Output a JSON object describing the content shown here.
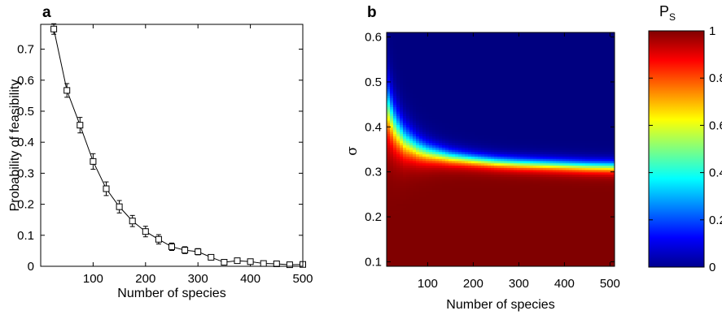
{
  "panel_a": {
    "letter": "a"
  },
  "panel_b": {
    "letter": "b"
  },
  "colorbar": {
    "label": "P",
    "label_sub": "S",
    "ticks": [
      "0",
      "0.2",
      "0.4",
      "0.6",
      "0.8",
      "1"
    ]
  },
  "chart_data": [
    {
      "panel": "a",
      "type": "line",
      "marker": "square",
      "error_bars": true,
      "xlabel": "Number of species",
      "ylabel": "Probability of feasibility",
      "xlim": [
        0,
        500
      ],
      "ylim": [
        0,
        0.78
      ],
      "xticks": [
        100,
        200,
        300,
        400,
        500
      ],
      "yticks": [
        0,
        0.1,
        0.2,
        0.3,
        0.4,
        0.5,
        0.6,
        0.7
      ],
      "grid": false,
      "series": [
        {
          "x": [
            25,
            50,
            75,
            100,
            125,
            150,
            175,
            200,
            225,
            250,
            275,
            300,
            325,
            350,
            375,
            400,
            425,
            450,
            475,
            500
          ],
          "y": [
            0.765,
            0.567,
            0.455,
            0.338,
            0.25,
            0.192,
            0.146,
            0.112,
            0.087,
            0.063,
            0.052,
            0.047,
            0.029,
            0.013,
            0.018,
            0.015,
            0.009,
            0.008,
            0.005,
            0.006
          ],
          "err": [
            0.017,
            0.022,
            0.025,
            0.025,
            0.022,
            0.02,
            0.018,
            0.017,
            0.015,
            0.012,
            0.011,
            0.01,
            0.008,
            0.007,
            0.007,
            0.006,
            0.005,
            0.005,
            0.004,
            0.004
          ]
        }
      ]
    },
    {
      "panel": "b",
      "type": "heatmap",
      "colormap": "jet",
      "xlabel": "Number of species",
      "ylabel": "σ",
      "xlim": [
        10,
        510
      ],
      "ylim": [
        0.09,
        0.61
      ],
      "xticks": [
        100,
        200,
        300,
        400,
        500
      ],
      "yticks": [
        0.1,
        0.2,
        0.3,
        0.4,
        0.5,
        0.6
      ],
      "value_range": [
        0,
        1
      ],
      "transition_sigma": {
        "x": [
          10,
          30,
          50,
          80,
          100,
          150,
          200,
          250,
          300,
          350,
          400,
          450,
          510
        ],
        "sigma": [
          0.445,
          0.395,
          0.368,
          0.35,
          0.343,
          0.333,
          0.327,
          0.322,
          0.319,
          0.317,
          0.315,
          0.313,
          0.312
        ]
      }
    }
  ]
}
